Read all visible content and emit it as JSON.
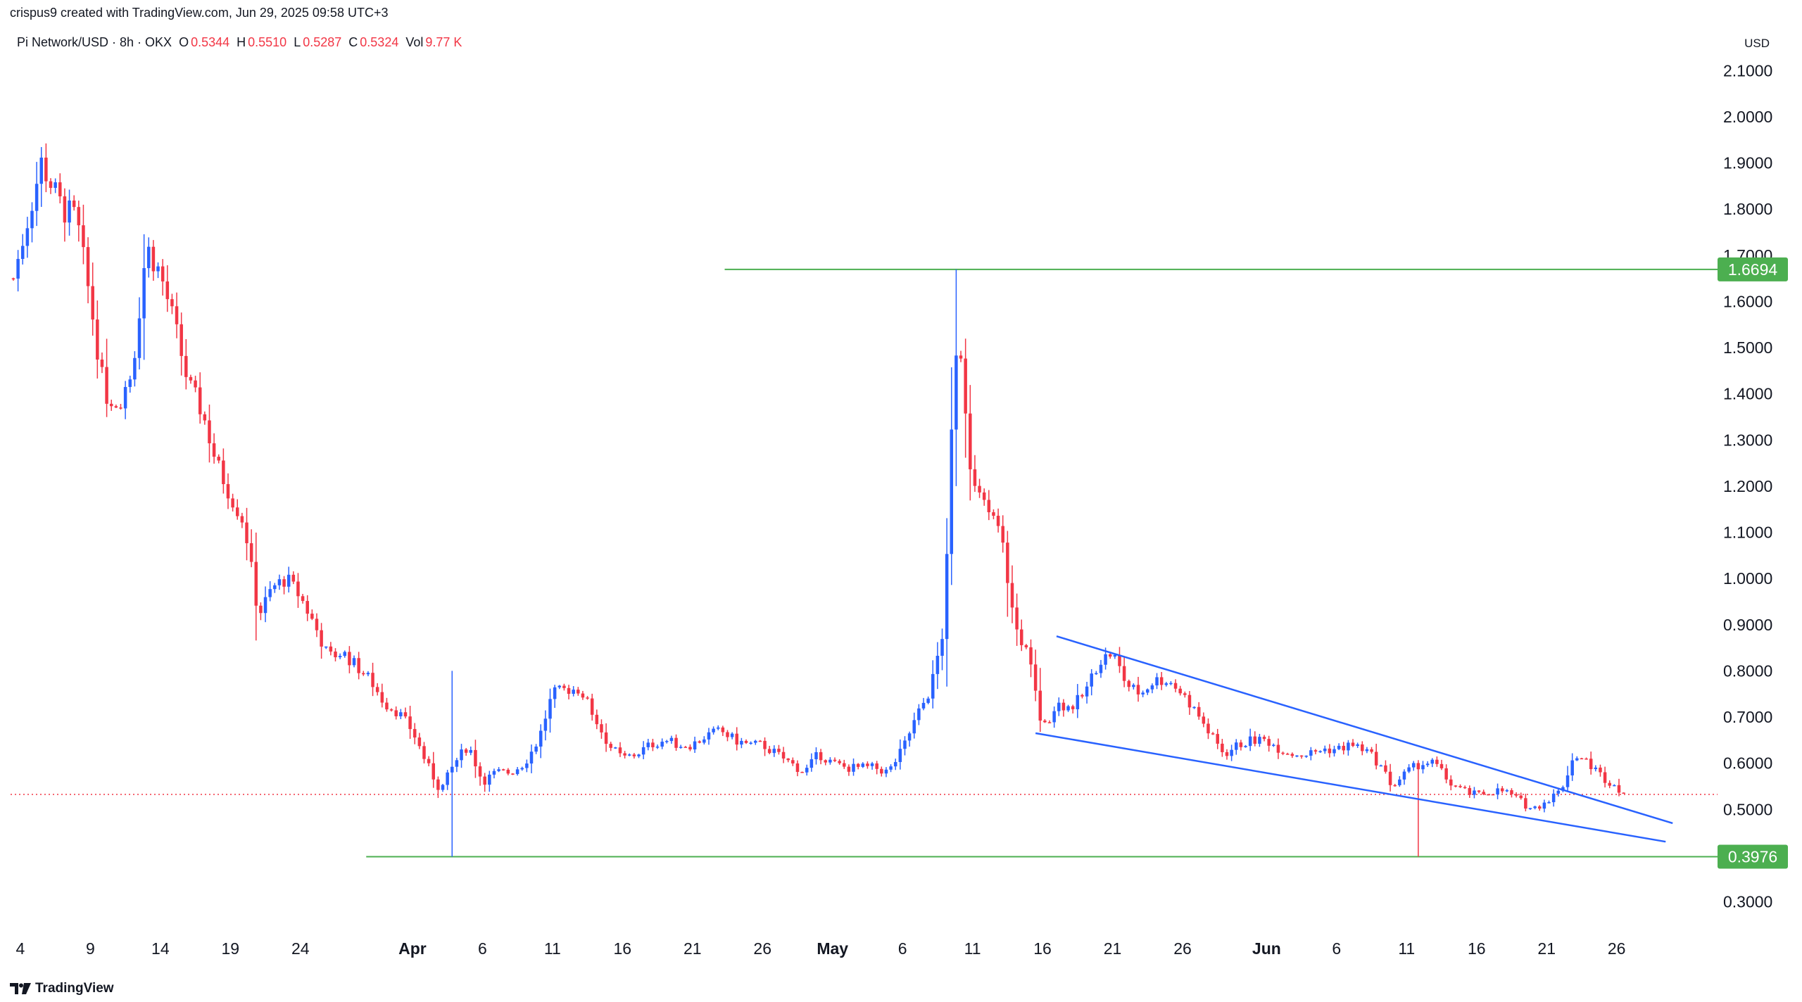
{
  "header": {
    "created_line": "crispus9 created with TradingView.com, Jun 29, 2025 09:58 UTC+3",
    "symbol": "Pi Network/USD · 8h · OKX",
    "ohlc": [
      {
        "k": "O",
        "v": "0.5344"
      },
      {
        "k": "H",
        "v": "0.5510"
      },
      {
        "k": "L",
        "v": "0.5287"
      },
      {
        "k": "C",
        "v": "0.5324"
      },
      {
        "k": "Vol",
        "v": "9.77 K"
      }
    ],
    "currency": "USD"
  },
  "footer": {
    "brand": "TradingView",
    "logo_icon": "tradingview-logo-icon"
  },
  "colors": {
    "up": "#2962ff",
    "down": "#f23645",
    "level": "#4caf50",
    "trend": "#2962ff",
    "grid_text": "#131722"
  },
  "chart_data": {
    "type": "candlestick",
    "title": "Pi Network/USD · 8h · OKX",
    "xlabel": "",
    "ylabel": "",
    "ylim": [
      0.25,
      2.15
    ],
    "y_ticks": [
      "0.3000",
      "0.4000",
      "0.5000",
      "0.6000",
      "0.7000",
      "0.8000",
      "0.9000",
      "1.0000",
      "1.1000",
      "1.2000",
      "1.3000",
      "1.4000",
      "1.5000",
      "1.6000",
      "1.7000",
      "1.8000",
      "1.9000",
      "2.0000",
      "2.1000"
    ],
    "x_ticks": [
      {
        "label": "4",
        "day": 4
      },
      {
        "label": "9",
        "day": 9
      },
      {
        "label": "14",
        "day": 14
      },
      {
        "label": "19",
        "day": 19
      },
      {
        "label": "24",
        "day": 24
      },
      {
        "label": "Apr",
        "day": 32,
        "month": true
      },
      {
        "label": "6",
        "day": 37
      },
      {
        "label": "11",
        "day": 42
      },
      {
        "label": "16",
        "day": 47
      },
      {
        "label": "21",
        "day": 52
      },
      {
        "label": "26",
        "day": 57
      },
      {
        "label": "May",
        "day": 62,
        "month": true
      },
      {
        "label": "6",
        "day": 67
      },
      {
        "label": "11",
        "day": 72
      },
      {
        "label": "16",
        "day": 77
      },
      {
        "label": "21",
        "day": 82
      },
      {
        "label": "26",
        "day": 87
      },
      {
        "label": "Jun",
        "day": 93,
        "month": true
      },
      {
        "label": "6",
        "day": 98
      },
      {
        "label": "11",
        "day": 103
      },
      {
        "label": "16",
        "day": 108
      },
      {
        "label": "21",
        "day": 113
      },
      {
        "label": "26",
        "day": 118
      }
    ],
    "x_range_days": [
      3.3,
      124.2
    ],
    "key_points": [
      [
        3.5,
        1.65
      ],
      [
        5.5,
        1.9
      ],
      [
        7,
        1.8
      ],
      [
        8,
        1.78
      ],
      [
        9,
        1.6
      ],
      [
        10,
        1.4
      ],
      [
        11,
        1.38
      ],
      [
        12,
        1.45
      ],
      [
        13,
        1.72
      ],
      [
        14,
        1.66
      ],
      [
        15,
        1.55
      ],
      [
        16,
        1.42
      ],
      [
        17,
        1.36
      ],
      [
        18,
        1.25
      ],
      [
        19,
        1.18
      ],
      [
        20,
        1.12
      ],
      [
        21,
        0.92
      ],
      [
        22,
        0.98
      ],
      [
        23,
        1.0
      ],
      [
        24,
        0.96
      ],
      [
        25,
        0.9
      ],
      [
        26,
        0.83
      ],
      [
        27,
        0.84
      ],
      [
        28,
        0.81
      ],
      [
        29,
        0.78
      ],
      [
        30,
        0.73
      ],
      [
        31,
        0.71
      ],
      [
        32,
        0.67
      ],
      [
        33,
        0.6
      ],
      [
        34,
        0.54
      ],
      [
        35,
        0.6
      ],
      [
        36,
        0.64
      ],
      [
        37,
        0.56
      ],
      [
        38,
        0.58
      ],
      [
        39,
        0.58
      ],
      [
        40,
        0.6
      ],
      [
        41,
        0.65
      ],
      [
        42,
        0.75
      ],
      [
        43,
        0.76
      ],
      [
        44,
        0.76
      ],
      [
        45,
        0.7
      ],
      [
        46,
        0.64
      ],
      [
        47,
        0.61
      ],
      [
        48,
        0.62
      ],
      [
        49,
        0.64
      ],
      [
        50,
        0.65
      ],
      [
        51,
        0.64
      ],
      [
        52,
        0.64
      ],
      [
        53,
        0.66
      ],
      [
        54,
        0.67
      ],
      [
        55,
        0.65
      ],
      [
        56,
        0.64
      ],
      [
        57,
        0.64
      ],
      [
        58,
        0.62
      ],
      [
        59,
        0.6
      ],
      [
        60,
        0.58
      ],
      [
        61,
        0.62
      ],
      [
        62,
        0.6
      ],
      [
        63,
        0.59
      ],
      [
        64,
        0.59
      ],
      [
        65,
        0.59
      ],
      [
        66,
        0.58
      ],
      [
        67,
        0.63
      ],
      [
        68,
        0.7
      ],
      [
        69,
        0.76
      ],
      [
        70,
        0.9
      ],
      [
        70.67,
        1.45
      ],
      [
        71,
        1.55
      ],
      [
        72,
        1.2
      ],
      [
        73,
        1.15
      ],
      [
        74,
        1.1
      ],
      [
        75,
        0.9
      ],
      [
        76,
        0.83
      ],
      [
        77,
        0.67
      ],
      [
        78,
        0.73
      ],
      [
        79,
        0.72
      ],
      [
        80,
        0.75
      ],
      [
        81,
        0.82
      ],
      [
        82,
        0.84
      ],
      [
        83,
        0.77
      ],
      [
        84,
        0.75
      ],
      [
        85,
        0.78
      ],
      [
        86,
        0.78
      ],
      [
        87,
        0.75
      ],
      [
        88,
        0.71
      ],
      [
        89,
        0.66
      ],
      [
        90,
        0.62
      ],
      [
        91,
        0.64
      ],
      [
        92,
        0.65
      ],
      [
        93,
        0.65
      ],
      [
        94,
        0.63
      ],
      [
        95,
        0.62
      ],
      [
        96,
        0.62
      ],
      [
        97,
        0.63
      ],
      [
        98,
        0.63
      ],
      [
        99,
        0.64
      ],
      [
        100,
        0.63
      ],
      [
        101,
        0.6
      ],
      [
        102,
        0.55
      ],
      [
        103,
        0.58
      ],
      [
        104,
        0.6
      ],
      [
        105,
        0.6
      ],
      [
        106,
        0.56
      ],
      [
        107,
        0.54
      ],
      [
        108,
        0.53
      ],
      [
        109,
        0.54
      ],
      [
        110,
        0.54
      ],
      [
        111,
        0.52
      ],
      [
        112,
        0.5
      ],
      [
        113,
        0.52
      ],
      [
        114,
        0.54
      ],
      [
        115,
        0.62
      ],
      [
        116,
        0.6
      ],
      [
        117,
        0.57
      ],
      [
        118,
        0.55
      ],
      [
        118.67,
        0.5324
      ]
    ],
    "spikes": [
      {
        "day": 34.67,
        "high": 0.8,
        "low": 0.3976
      },
      {
        "day": 70.67,
        "high": 1.6694,
        "low": 1.2
      },
      {
        "day": 103.67,
        "high": 0.6,
        "low": 0.3976
      }
    ],
    "levels": [
      {
        "value": 1.6694,
        "label": "1.6694",
        "from_day": 54.3
      },
      {
        "value": 0.3976,
        "label": "0.3976",
        "from_day": 28.7
      }
    ],
    "current_price": 0.5324,
    "trendlines": [
      {
        "from": [
          78.0,
          0.875
        ],
        "to": [
          122.0,
          0.47
        ]
      },
      {
        "from": [
          76.5,
          0.665
        ],
        "to": [
          121.5,
          0.43
        ]
      }
    ]
  }
}
